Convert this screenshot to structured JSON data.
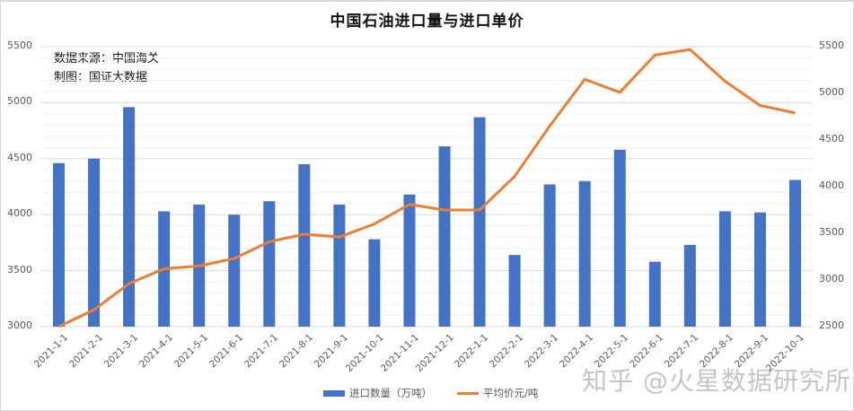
{
  "title": "中国石油进口量与进口单价",
  "annotations": {
    "source": "数据来源：中国海关",
    "author": "制图：国证大数据"
  },
  "legend": {
    "bar_label": "进口数量（万吨）",
    "line_label": "平均价元/吨"
  },
  "watermark": "知乎 @火星数据研究所",
  "axes": {
    "left_ticks": [
      "5500",
      "5000",
      "4500",
      "4000",
      "3500",
      "3000"
    ],
    "right_ticks": [
      "5500",
      "5000",
      "4500",
      "4000",
      "3500",
      "3000",
      "2500"
    ]
  },
  "colors": {
    "bar": "#4472c4",
    "line": "#ed7d31",
    "grid": "#d9d9d9"
  },
  "chart_data": {
    "type": "bar",
    "title": "中国石油进口量与进口单价",
    "xlabel": "",
    "ylabel": "进口数量（万吨）",
    "y2label": "平均价元/吨",
    "categories": [
      "2021-1-1",
      "2021-2-1",
      "2021-3-1",
      "2021-4-1",
      "2021-5-1",
      "2021-6-1",
      "2021-7-1",
      "2021-8-1",
      "2021-9-1",
      "2021-10-1",
      "2021-11-1",
      "2021-12-1",
      "2022-1-1",
      "2022-2-1",
      "2022-3-1",
      "2022-4-1",
      "2022-5-1",
      "2022-6-1",
      "2022-7-1",
      "2022-8-1",
      "2022-9-1",
      "2022-10-1"
    ],
    "series": [
      {
        "name": "进口数量（万吨）",
        "type": "bar",
        "axis": "left",
        "values": [
          4460,
          4500,
          4960,
          4030,
          4090,
          4000,
          4120,
          4450,
          4090,
          3780,
          4180,
          4610,
          4870,
          3640,
          4270,
          4300,
          4580,
          3580,
          3730,
          4030,
          4020,
          4310
        ]
      },
      {
        "name": "平均价元/吨",
        "type": "line",
        "axis": "right",
        "values": [
          2500,
          2680,
          2960,
          3120,
          3150,
          3230,
          3410,
          3490,
          3460,
          3600,
          3810,
          3750,
          3750,
          4110,
          4650,
          5150,
          5010,
          5410,
          5470,
          5130,
          4870,
          4790
        ]
      }
    ],
    "ylim": [
      3000,
      5500
    ],
    "y2lim": [
      2500,
      5500
    ],
    "y_ticks": [
      3000,
      3500,
      4000,
      4500,
      5000,
      5500
    ],
    "y2_ticks": [
      2500,
      3000,
      3500,
      4000,
      4500,
      5000,
      5500
    ],
    "grid": true,
    "legend_position": "bottom"
  }
}
